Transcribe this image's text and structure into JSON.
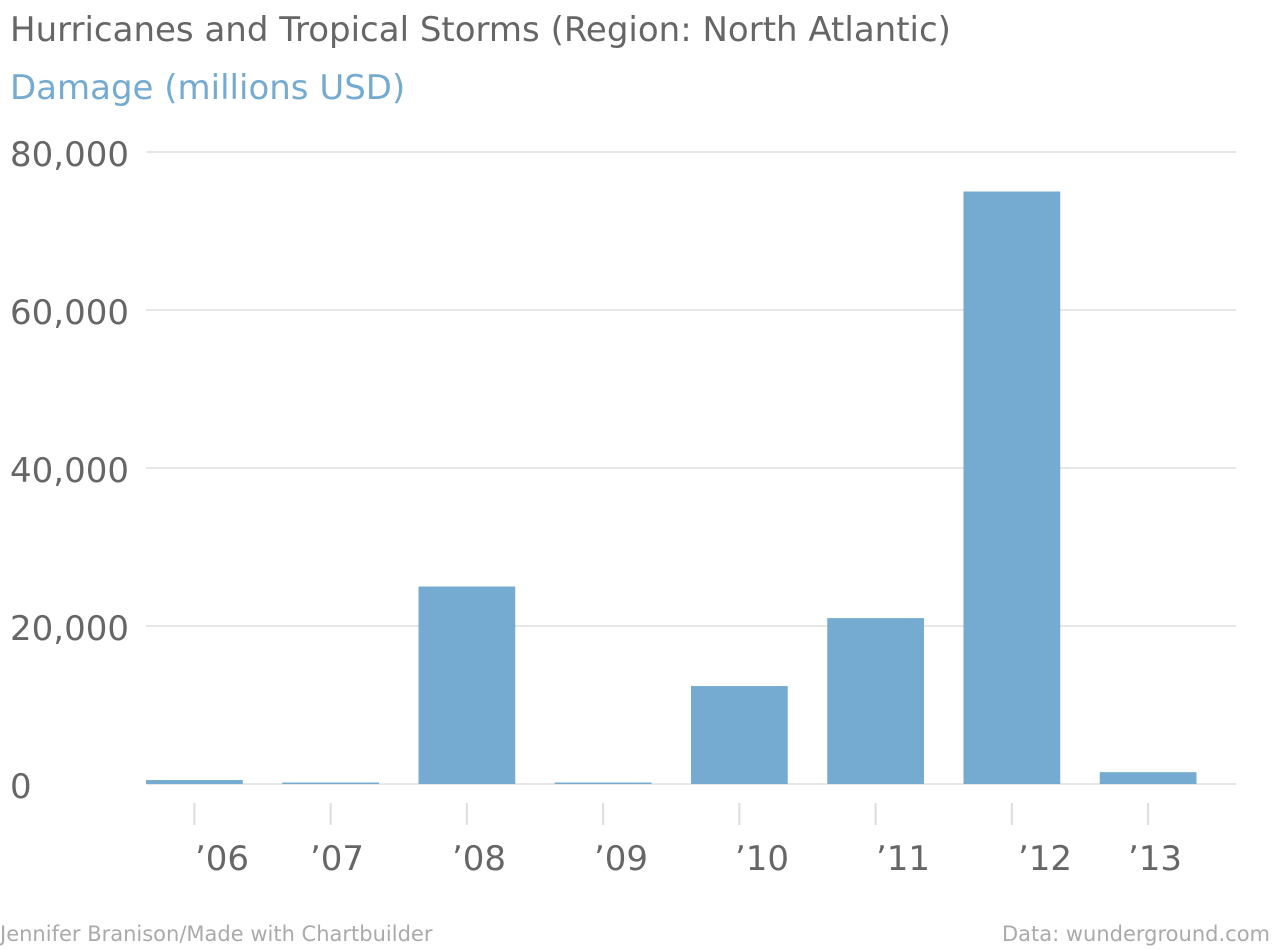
{
  "chart_data": {
    "type": "bar",
    "title": "Hurricanes and Tropical Storms (Region: North Atlantic)",
    "subtitle": "Damage (millions USD)",
    "categories": [
      "’06",
      "’07",
      "’08",
      "’09",
      "’10",
      "’11",
      "’12",
      "’13"
    ],
    "values": [
      500,
      100,
      25000,
      100,
      12400,
      21000,
      75000,
      1500
    ],
    "y_ticks": [
      "80,000",
      "60,000",
      "40,000",
      "20,000",
      "0"
    ],
    "ylim": [
      0,
      80000
    ],
    "grid": true,
    "legend": "none"
  },
  "footer": {
    "credit": "Jennifer Branison/Made with Chartbuilder",
    "source": "Data: wunderground.com"
  },
  "colors": {
    "bar": "#75abd0",
    "title": "#666666",
    "subtitle": "#75abd0",
    "grid": "#dddddd",
    "axis_text": "#666666"
  }
}
